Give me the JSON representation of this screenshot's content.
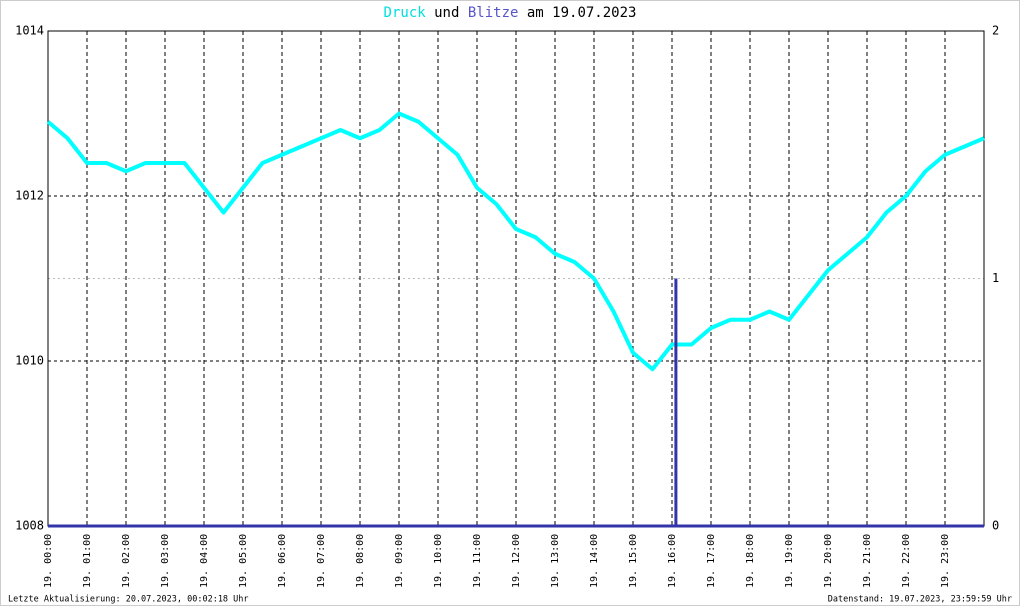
{
  "chart_data": {
    "type": "line",
    "title_middle": "und",
    "title_date": "am 19.07.2023",
    "series": [
      {
        "name": "Druck",
        "color": "#00ffff",
        "type": "line",
        "x": [
          0,
          0.5,
          1,
          1.5,
          2,
          2.5,
          3,
          3.5,
          4,
          4.5,
          5,
          5.5,
          6,
          6.5,
          7,
          7.5,
          8,
          8.5,
          9,
          9.5,
          10,
          10.5,
          11,
          11.5,
          12,
          12.5,
          13,
          13.5,
          14,
          14.5,
          15,
          15.5,
          16,
          16.5,
          17,
          17.5,
          18,
          18.5,
          19,
          19.5,
          20,
          20.5,
          21,
          21.5,
          22,
          22.5,
          23,
          23.5,
          24
        ],
        "values": [
          1012.9,
          1012.7,
          1012.4,
          1012.4,
          1012.3,
          1012.4,
          1012.4,
          1012.4,
          1012.1,
          1011.8,
          1012.1,
          1012.4,
          1012.5,
          1012.6,
          1012.7,
          1012.8,
          1012.7,
          1012.8,
          1013.0,
          1012.9,
          1012.7,
          1012.5,
          1012.1,
          1011.9,
          1011.6,
          1011.5,
          1011.3,
          1011.2,
          1011.0,
          1010.6,
          1010.1,
          1009.9,
          1010.2,
          1010.2,
          1010.4,
          1010.5,
          1010.5,
          1010.6,
          1010.5,
          1010.8,
          1011.1,
          1011.3,
          1011.5,
          1011.8,
          1012.0,
          1012.3,
          1012.5,
          1012.6,
          1012.7
        ]
      },
      {
        "name": "Blitze",
        "color": "#3333aa",
        "type": "bar",
        "axis": "y2",
        "x": [
          16.1
        ],
        "values": [
          1
        ]
      }
    ],
    "xlim": [
      0,
      24
    ],
    "xticks": [
      {
        "value": 0,
        "label": "19. 00:00"
      },
      {
        "value": 1,
        "label": "19. 01:00"
      },
      {
        "value": 2,
        "label": "19. 02:00"
      },
      {
        "value": 3,
        "label": "19. 03:00"
      },
      {
        "value": 4,
        "label": "19. 04:00"
      },
      {
        "value": 5,
        "label": "19. 05:00"
      },
      {
        "value": 6,
        "label": "19. 06:00"
      },
      {
        "value": 7,
        "label": "19. 07:00"
      },
      {
        "value": 8,
        "label": "19. 08:00"
      },
      {
        "value": 9,
        "label": "19. 09:00"
      },
      {
        "value": 10,
        "label": "19. 10:00"
      },
      {
        "value": 11,
        "label": "19. 11:00"
      },
      {
        "value": 12,
        "label": "19. 12:00"
      },
      {
        "value": 13,
        "label": "19. 13:00"
      },
      {
        "value": 14,
        "label": "19. 14:00"
      },
      {
        "value": 15,
        "label": "19. 15:00"
      },
      {
        "value": 16,
        "label": "19. 16:00"
      },
      {
        "value": 17,
        "label": "19. 17:00"
      },
      {
        "value": 18,
        "label": "19. 18:00"
      },
      {
        "value": 19,
        "label": "19. 19:00"
      },
      {
        "value": 20,
        "label": "19. 20:00"
      },
      {
        "value": 21,
        "label": "19. 21:00"
      },
      {
        "value": 22,
        "label": "19. 22:00"
      },
      {
        "value": 23,
        "label": "19. 23:00"
      }
    ],
    "ylim": [
      1008,
      1014
    ],
    "yticks": [
      1008,
      1010,
      1012,
      1014
    ],
    "y2lim": [
      0,
      2
    ],
    "y2ticks": [
      0,
      1,
      2
    ],
    "grid": true,
    "footer_left": "Letzte Aktualisierung: 20.07.2023, 00:02:18 Uhr",
    "footer_right": "Datenstand: 19.07.2023, 23:59:59 Uhr"
  }
}
